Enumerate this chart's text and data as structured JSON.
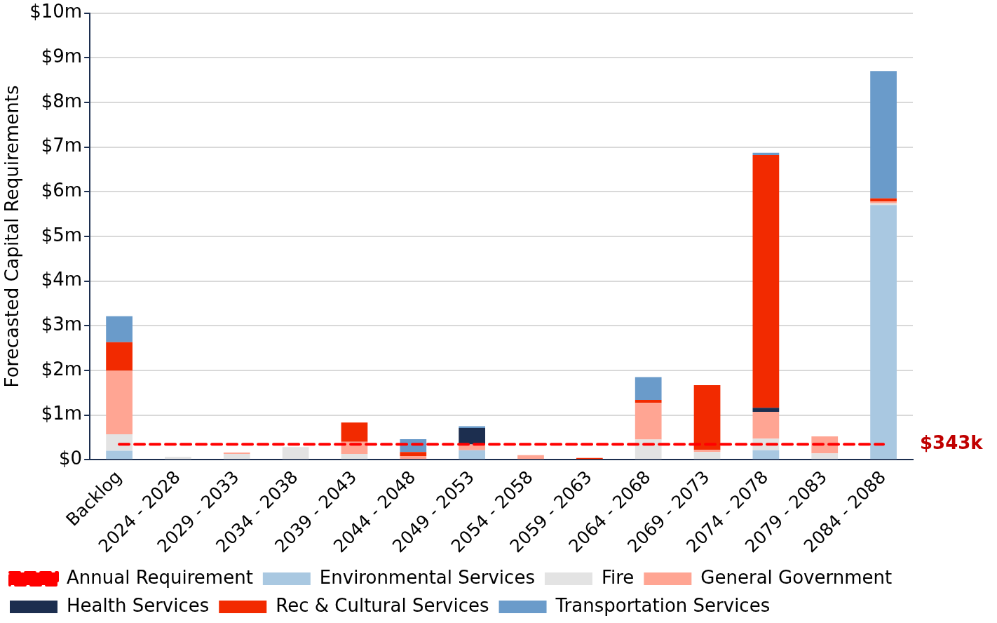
{
  "chart_data": {
    "type": "bar",
    "stacked": true,
    "ylabel": "Forecasted Capital Requirements",
    "categories": [
      "Backlog",
      "2024 - 2028",
      "2029 - 2033",
      "2034 - 2038",
      "2039 - 2043",
      "2044 - 2048",
      "2049 - 2053",
      "2054 - 2058",
      "2059 - 2063",
      "2064 - 2068",
      "2069 - 2073",
      "2074 - 2078",
      "2079 - 2083",
      "2084 - 2088"
    ],
    "series": [
      {
        "name": "Environmental Services",
        "color": "#a9c8e1",
        "values": [
          0.2,
          0,
          0,
          0,
          0,
          0,
          0.21,
          0,
          0,
          0,
          0,
          0.21,
          0,
          5.7
        ]
      },
      {
        "name": "Fire",
        "color": "#e3e3e3",
        "values": [
          0.37,
          0.06,
          0.13,
          0.28,
          0.13,
          0,
          0,
          0,
          0,
          0.45,
          0.17,
          0.26,
          0.14,
          0.04
        ]
      },
      {
        "name": "General Government",
        "color": "#ffa593",
        "values": [
          1.42,
          0,
          0.03,
          0,
          0.27,
          0.08,
          0.13,
          0.1,
          0,
          0.82,
          0.05,
          0.6,
          0.38,
          0.04
        ]
      },
      {
        "name": "Health Services",
        "color": "#1c2e4f",
        "values": [
          0,
          0,
          0,
          0,
          0,
          0,
          0.37,
          0,
          0,
          0,
          0,
          0.09,
          0,
          0
        ]
      },
      {
        "name": "Rec & Cultural Services",
        "color": "#f22a00",
        "values": [
          0.64,
          0,
          0,
          0,
          0.43,
          0.09,
          0,
          0,
          0.04,
          0.07,
          1.45,
          5.66,
          0,
          0.07
        ]
      },
      {
        "name": "Transportation Services",
        "color": "#6a9bca",
        "values": [
          0.58,
          0,
          0,
          0,
          0,
          0.29,
          0.04,
          0,
          0,
          0.51,
          0,
          0.05,
          0,
          2.85
        ]
      },
      {
        "name": "Annual Requirement",
        "type": "line",
        "color": "#ff0000",
        "line_style": "dashed",
        "marker": "none",
        "values": [
          0.343,
          0.343,
          0.343,
          0.343,
          0.343,
          0.343,
          0.343,
          0.343,
          0.343,
          0.343,
          0.343,
          0.343,
          0.343,
          0.343
        ]
      }
    ],
    "annotations": [
      {
        "text": "$343k",
        "x": "2084 - 2088",
        "y": 0.343
      }
    ],
    "ylim": [
      0,
      10
    ],
    "yticks": [
      {
        "value": 0,
        "label": "$0"
      },
      {
        "value": 1,
        "label": "$1m"
      },
      {
        "value": 2,
        "label": "$2m"
      },
      {
        "value": 3,
        "label": "$3m"
      },
      {
        "value": 4,
        "label": "$4m"
      },
      {
        "value": 5,
        "label": "$5m"
      },
      {
        "value": 6,
        "label": "$6m"
      },
      {
        "value": 7,
        "label": "$7m"
      },
      {
        "value": 8,
        "label": "$8m"
      },
      {
        "value": 9,
        "label": "$9m"
      },
      {
        "value": 10,
        "label": "$10m"
      }
    ],
    "grid": "y",
    "legend": "bottom"
  }
}
